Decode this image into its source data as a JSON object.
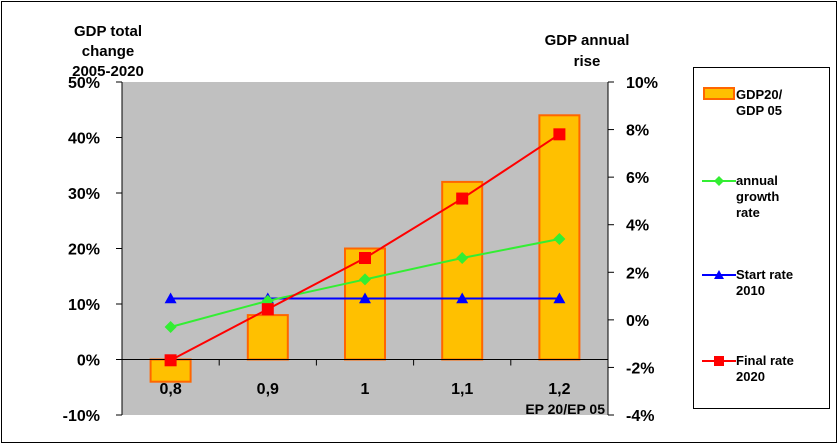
{
  "chart_data": {
    "type": "bar+line",
    "left_axis_title": "GDP total change 2005-2020",
    "left_axis_title_lines": [
      "GDP total",
      "change",
      "2005-2020"
    ],
    "right_axis_title": "GDP annual rise",
    "right_axis_title_lines": [
      "GDP annual",
      "rise"
    ],
    "xlabel": "EP 20/EP 05",
    "categories": [
      "0,8",
      "0,9",
      "1",
      "1,1",
      "1,2"
    ],
    "left_ylim": [
      -10,
      50
    ],
    "left_yticks": [
      -10,
      0,
      10,
      20,
      30,
      40,
      50
    ],
    "left_ytick_labels": [
      "-10%",
      "0%",
      "10%",
      "20%",
      "30%",
      "40%",
      "50%"
    ],
    "right_ylim": [
      -4,
      10
    ],
    "right_yticks": [
      -4,
      -2,
      0,
      2,
      4,
      6,
      8,
      10
    ],
    "right_ytick_labels": [
      "-4%",
      "-2%",
      "0%",
      "2%",
      "4%",
      "6%",
      "8%",
      "10%"
    ],
    "plot_background": "#c0c0c0",
    "grid": false,
    "legend_position": "right",
    "series": [
      {
        "name": "GDP20/ GDP 05",
        "label_lines": [
          "GDP20/",
          "GDP 05"
        ],
        "kind": "bar",
        "axis": "left",
        "values": [
          -4,
          8,
          20,
          32,
          44
        ],
        "fill": "#ffc000",
        "stroke": "#ff6600"
      },
      {
        "name": "annual growth rate",
        "label_lines": [
          "annual",
          "growth",
          "rate"
        ],
        "kind": "line",
        "axis": "right",
        "values": [
          -0.3,
          0.8,
          1.7,
          2.6,
          3.4
        ],
        "color": "#33ee33",
        "marker": "diamond"
      },
      {
        "name": "Start rate 2010",
        "label_lines": [
          "Start rate",
          "2010"
        ],
        "kind": "line",
        "axis": "right",
        "values": [
          0.9,
          0.9,
          0.9,
          0.9,
          0.9
        ],
        "color": "#0000ff",
        "marker": "triangle"
      },
      {
        "name": "Final rate 2020",
        "label_lines": [
          "Final rate",
          "2020"
        ],
        "kind": "line",
        "axis": "right",
        "values": [
          -1.7,
          0.45,
          2.6,
          5.1,
          7.8
        ],
        "color": "#ff0000",
        "marker": "square"
      }
    ]
  }
}
